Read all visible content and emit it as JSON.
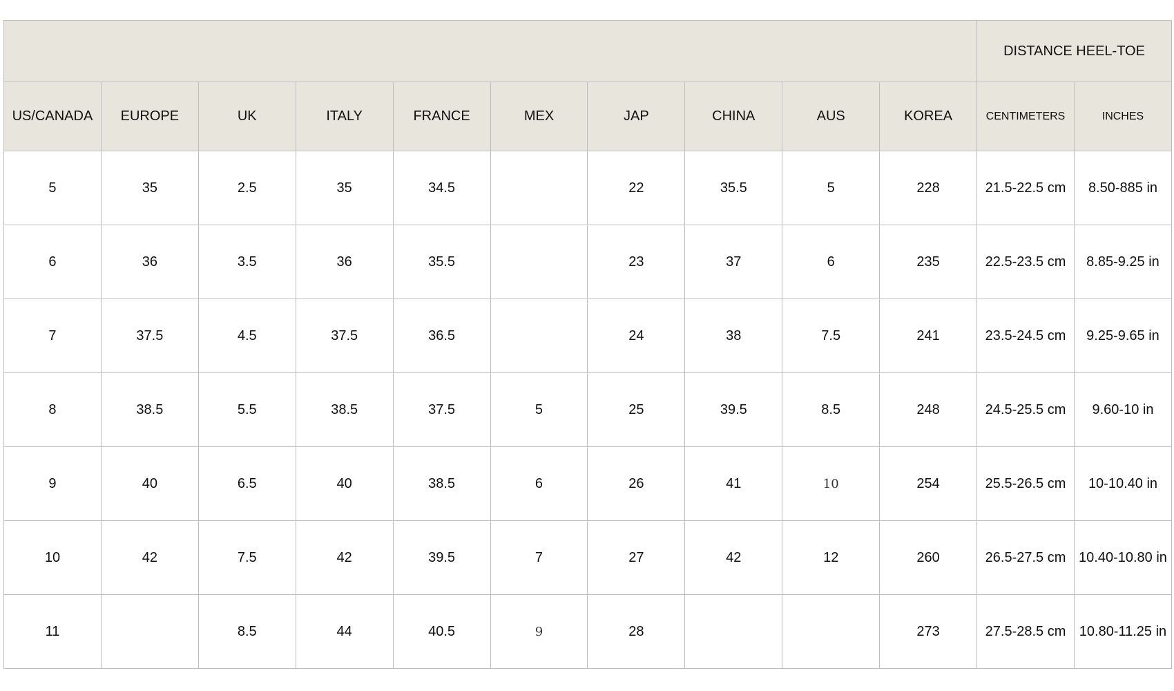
{
  "header": {
    "group_label": "DISTANCE HEEL-TOE",
    "columns": [
      "US/CANADA",
      "EUROPE",
      "UK",
      "ITALY",
      "FRANCE",
      "MEX",
      "JAP",
      "CHINA",
      "AUS",
      "KOREA",
      "CENTIMETERS",
      "INCHES"
    ]
  },
  "rows": [
    [
      "5",
      "35",
      "2.5",
      "35",
      "34.5",
      "",
      "22",
      "35.5",
      "5",
      "228",
      "21.5-22.5 cm",
      "8.50-885 in"
    ],
    [
      "6",
      "36",
      "3.5",
      "36",
      "35.5",
      "",
      "23",
      "37",
      "6",
      "235",
      "22.5-23.5 cm",
      "8.85-9.25 in"
    ],
    [
      "7",
      "37.5",
      "4.5",
      "37.5",
      "36.5",
      "",
      "24",
      "38",
      "7.5",
      "241",
      "23.5-24.5 cm",
      "9.25-9.65 in"
    ],
    [
      "8",
      "38.5",
      "5.5",
      "38.5",
      "37.5",
      "5",
      "25",
      "39.5",
      "8.5",
      "248",
      "24.5-25.5 cm",
      "9.60-10 in"
    ],
    [
      "9",
      "40",
      "6.5",
      "40",
      "38.5",
      "6",
      "26",
      "41",
      "10",
      "254",
      "25.5-26.5 cm",
      "10-10.40 in"
    ],
    [
      "10",
      "42",
      "7.5",
      "42",
      "39.5",
      "7",
      "27",
      "42",
      "12",
      "260",
      "26.5-27.5 cm",
      "10.40-10.80 in"
    ],
    [
      "11",
      "",
      "8.5",
      "44",
      "40.5",
      "9",
      "28",
      "",
      "",
      "273",
      "27.5-28.5 cm",
      "10.80-11.25 in"
    ]
  ]
}
